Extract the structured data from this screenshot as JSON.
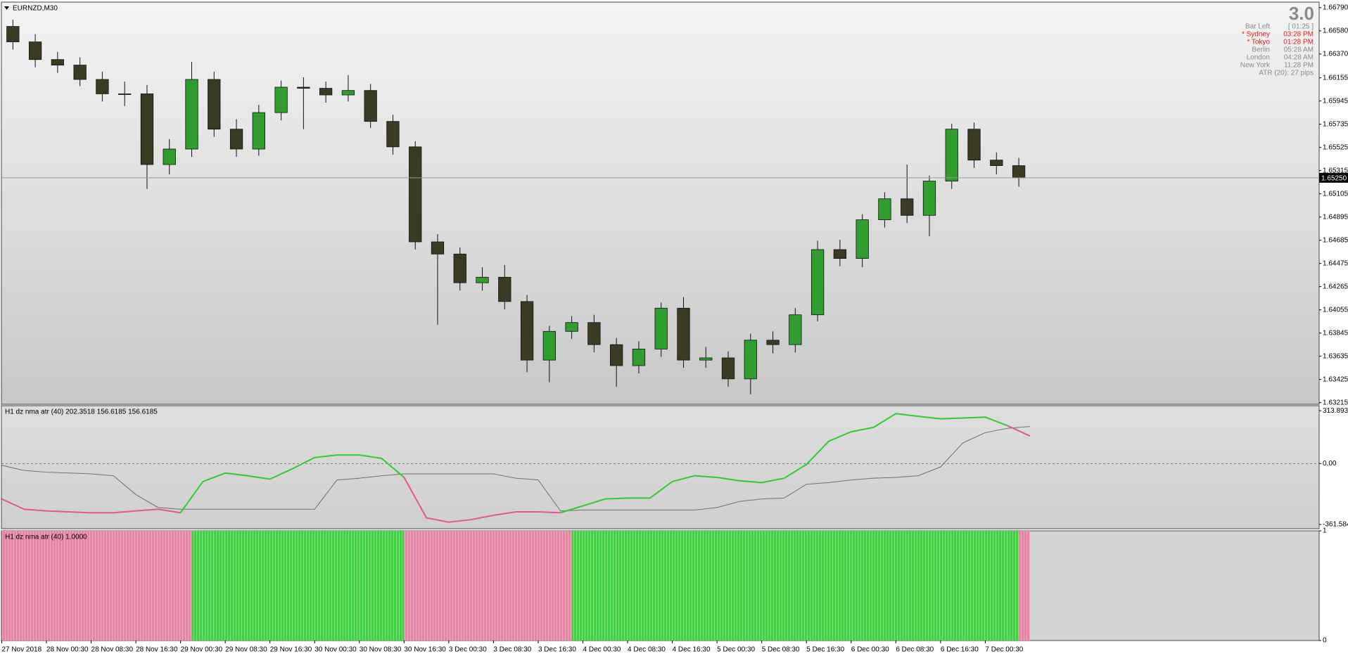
{
  "chart_data": [
    {
      "type": "candlestick",
      "title": "EURNZD,M30",
      "open": [
        1.6662,
        1.6648,
        1.6632,
        1.6627,
        1.6614,
        1.6601,
        1.6601,
        1.6537,
        1.6551,
        1.6614,
        1.6569,
        1.6551,
        1.6584,
        1.6607,
        1.6606,
        1.66,
        1.6604,
        1.6576,
        1.6553,
        1.6467,
        1.6456,
        1.643,
        1.6435,
        1.6413,
        1.636,
        1.6386,
        1.6394,
        1.6374,
        1.6355,
        1.637,
        1.6407,
        1.636,
        1.6362,
        1.6343,
        1.6378,
        1.6374,
        1.6401,
        1.646,
        1.6452,
        1.6487,
        1.6506,
        1.6491,
        1.6522,
        1.6569,
        1.6541,
        1.6536
      ],
      "high": [
        1.6668,
        1.6655,
        1.6639,
        1.6634,
        1.6621,
        1.6612,
        1.6609,
        1.656,
        1.663,
        1.6621,
        1.6578,
        1.6591,
        1.6613,
        1.6616,
        1.6612,
        1.6618,
        1.661,
        1.6582,
        1.6558,
        1.6474,
        1.6462,
        1.6444,
        1.6446,
        1.6419,
        1.6391,
        1.64,
        1.6401,
        1.638,
        1.6377,
        1.6412,
        1.6417,
        1.6372,
        1.6368,
        1.6384,
        1.6386,
        1.6407,
        1.6468,
        1.6469,
        1.6492,
        1.6512,
        1.6537,
        1.6527,
        1.6574,
        1.6575,
        1.6548,
        1.6543
      ],
      "low": [
        1.6641,
        1.6625,
        1.662,
        1.6608,
        1.6594,
        1.659,
        1.6515,
        1.6528,
        1.6544,
        1.6562,
        1.6544,
        1.6545,
        1.6577,
        1.6569,
        1.6593,
        1.6594,
        1.657,
        1.6546,
        1.646,
        1.6392,
        1.6423,
        1.6423,
        1.6406,
        1.6349,
        1.634,
        1.6379,
        1.6367,
        1.6336,
        1.6348,
        1.6363,
        1.6353,
        1.6353,
        1.6336,
        1.6329,
        1.6366,
        1.6367,
        1.6395,
        1.6445,
        1.6444,
        1.648,
        1.6484,
        1.6472,
        1.6515,
        1.6534,
        1.6528,
        1.6517
      ],
      "close": [
        1.6648,
        1.6632,
        1.6627,
        1.6614,
        1.6601,
        1.6601,
        1.6537,
        1.6551,
        1.6614,
        1.6569,
        1.6551,
        1.6584,
        1.6607,
        1.6606,
        1.66,
        1.6604,
        1.6576,
        1.6553,
        1.6467,
        1.6456,
        1.643,
        1.6435,
        1.6413,
        1.636,
        1.6386,
        1.6394,
        1.6374,
        1.6355,
        1.637,
        1.6407,
        1.636,
        1.6362,
        1.6343,
        1.6378,
        1.6374,
        1.6401,
        1.646,
        1.6452,
        1.6487,
        1.6506,
        1.6491,
        1.6522,
        1.6569,
        1.6541,
        1.6536,
        1.6525
      ],
      "up_color": "#2f9e2f",
      "down_color": "#3b3a22",
      "ylim": [
        1.632,
        1.6684
      ],
      "yticks": [
        {
          "value": 1.6679,
          "label": "1.66790"
        },
        {
          "value": 1.6658,
          "label": "1.66580"
        },
        {
          "value": 1.6637,
          "label": "1.66370"
        },
        1.66155,
        1.65945,
        1.65735,
        1.65525,
        1.65315,
        1.65105,
        1.64895,
        1.64685,
        1.64475,
        1.64265,
        1.64055,
        1.63845,
        1.63635,
        1.63425,
        1.63215
      ],
      "last_price": {
        "value": 1.6525,
        "label": "1.65250"
      }
    },
    {
      "type": "line",
      "title": "H1 dz nma atr (40) 202.3518 156.6185 156.6185",
      "ylim": [
        -387,
        344
      ],
      "yticks": [
        313.8935,
        {
          "value": 0,
          "label": "0.00"
        },
        -361.5845
      ],
      "zero_line": true,
      "series": [
        {
          "color": "#6e6e6e",
          "values": [
            -10,
            -41,
            -51,
            -56,
            -61,
            -72,
            -184,
            -261,
            -271,
            -271,
            -271,
            -271,
            -271,
            -271,
            -271,
            -97,
            -87,
            -72,
            -61,
            -61,
            -61,
            -61,
            -61,
            -87,
            -97,
            -281,
            -276,
            -276,
            -276,
            -276,
            -276,
            -276,
            -261,
            -225,
            -210,
            -205,
            -123,
            -113,
            -97,
            -87,
            -82,
            -72,
            -20,
            123,
            184,
            210,
            220
          ]
        },
        {
          "color": "#e0578a",
          "values": [
            -210,
            -271,
            -281,
            -287,
            -292,
            -292,
            -281,
            -271,
            -292,
            null,
            null,
            null,
            null,
            null,
            null,
            null,
            null,
            null,
            -82,
            -322,
            -348,
            -333,
            -307,
            -287,
            -287,
            -292,
            null,
            null,
            null,
            null,
            null,
            null,
            null,
            null,
            null,
            null,
            null,
            null,
            null,
            null,
            null,
            null,
            null,
            null,
            null,
            225,
            164
          ]
        },
        {
          "color": "#2ecc2e",
          "values": [
            null,
            null,
            null,
            null,
            null,
            null,
            null,
            null,
            -292,
            -107,
            -56,
            -72,
            -92,
            -31,
            36,
            51,
            51,
            31,
            -82,
            null,
            null,
            null,
            null,
            null,
            null,
            -292,
            -251,
            -210,
            -205,
            -205,
            -107,
            -72,
            -82,
            -102,
            -113,
            -87,
            -5,
            133,
            189,
            215,
            297,
            281,
            266,
            271,
            276,
            225,
            null
          ]
        }
      ]
    },
    {
      "type": "bar",
      "title": "H1 dz nma atr (40) 1.0000",
      "ylim": [
        0,
        1
      ],
      "yticks": [
        1,
        0
      ],
      "series": [
        {
          "color": "#3fd13f",
          "values": [
            null,
            null,
            null,
            null,
            null,
            null,
            null,
            null,
            null,
            null,
            null,
            null,
            null,
            null,
            null,
            null,
            null,
            1,
            1,
            1,
            1,
            1,
            1,
            1,
            1,
            1,
            1,
            1,
            1,
            1,
            1,
            1,
            1,
            1,
            1,
            1,
            null,
            null,
            null,
            null,
            null,
            null,
            null,
            null,
            null,
            null,
            null,
            null,
            null,
            null,
            null,
            1,
            1,
            1,
            1,
            1,
            1,
            1,
            1,
            1,
            1,
            1,
            1,
            1,
            1,
            1,
            1,
            1,
            1,
            1,
            1,
            1,
            1,
            1,
            1,
            1,
            1,
            1,
            1,
            1,
            1,
            1,
            1,
            1,
            1,
            1,
            1,
            1,
            1,
            1,
            1,
            null
          ]
        },
        {
          "color": "#e683a2",
          "values": [
            1,
            1,
            1,
            1,
            1,
            1,
            1,
            1,
            1,
            1,
            1,
            1,
            1,
            1,
            1,
            1,
            1,
            null,
            null,
            null,
            null,
            null,
            null,
            null,
            null,
            null,
            null,
            null,
            null,
            null,
            null,
            null,
            null,
            null,
            null,
            null,
            1,
            1,
            1,
            1,
            1,
            1,
            1,
            1,
            1,
            1,
            1,
            1,
            1,
            1,
            1,
            null,
            null,
            null,
            null,
            null,
            null,
            null,
            null,
            null,
            null,
            null,
            null,
            null,
            null,
            null,
            null,
            null,
            null,
            null,
            null,
            null,
            null,
            null,
            null,
            null,
            null,
            null,
            null,
            null,
            null,
            null,
            null,
            null,
            null,
            null,
            null,
            null,
            null,
            null,
            null,
            1
          ]
        }
      ]
    }
  ],
  "time_labels": [
    "27 Nov 2018",
    "28 Nov 00:30",
    "28 Nov 08:30",
    "28 Nov 16:30",
    "29 Nov 00:30",
    "29 Nov 08:30",
    "29 Nov 16:30",
    "30 Nov 00:30",
    "30 Nov 08:30",
    "30 Nov 16:30",
    "3 Dec 00:30",
    "3 Dec 08:30",
    "3 Dec 16:30",
    "4 Dec 00:30",
    "4 Dec 08:30",
    "4 Dec 16:30",
    "5 Dec 00:30",
    "5 Dec 08:30",
    "5 Dec 16:30",
    "6 Dec 00:30",
    "6 Dec 08:30",
    "6 Dec 16:30",
    "7 Dec 00:30"
  ],
  "info": {
    "version": "3.0",
    "rows": [
      {
        "label": "Bar Left",
        "value": "[ 01:25 ]",
        "color": "#8a8a8a"
      },
      {
        "label": "* Sydney",
        "value": "03:28 PM",
        "color": "#e51b1b"
      },
      {
        "label": "* Tokyo",
        "value": "01:28 PM",
        "color": "#e51b1b"
      },
      {
        "label": "Berlin",
        "value": "05:28 AM",
        "color": "#8a8a8a"
      },
      {
        "label": "London",
        "value": "04:28 AM",
        "color": "#8a8a8a"
      },
      {
        "label": "New York",
        "value": "11:28 PM",
        "color": "#8a8a8a"
      }
    ],
    "atr": "ATR (20): 27 pips"
  }
}
